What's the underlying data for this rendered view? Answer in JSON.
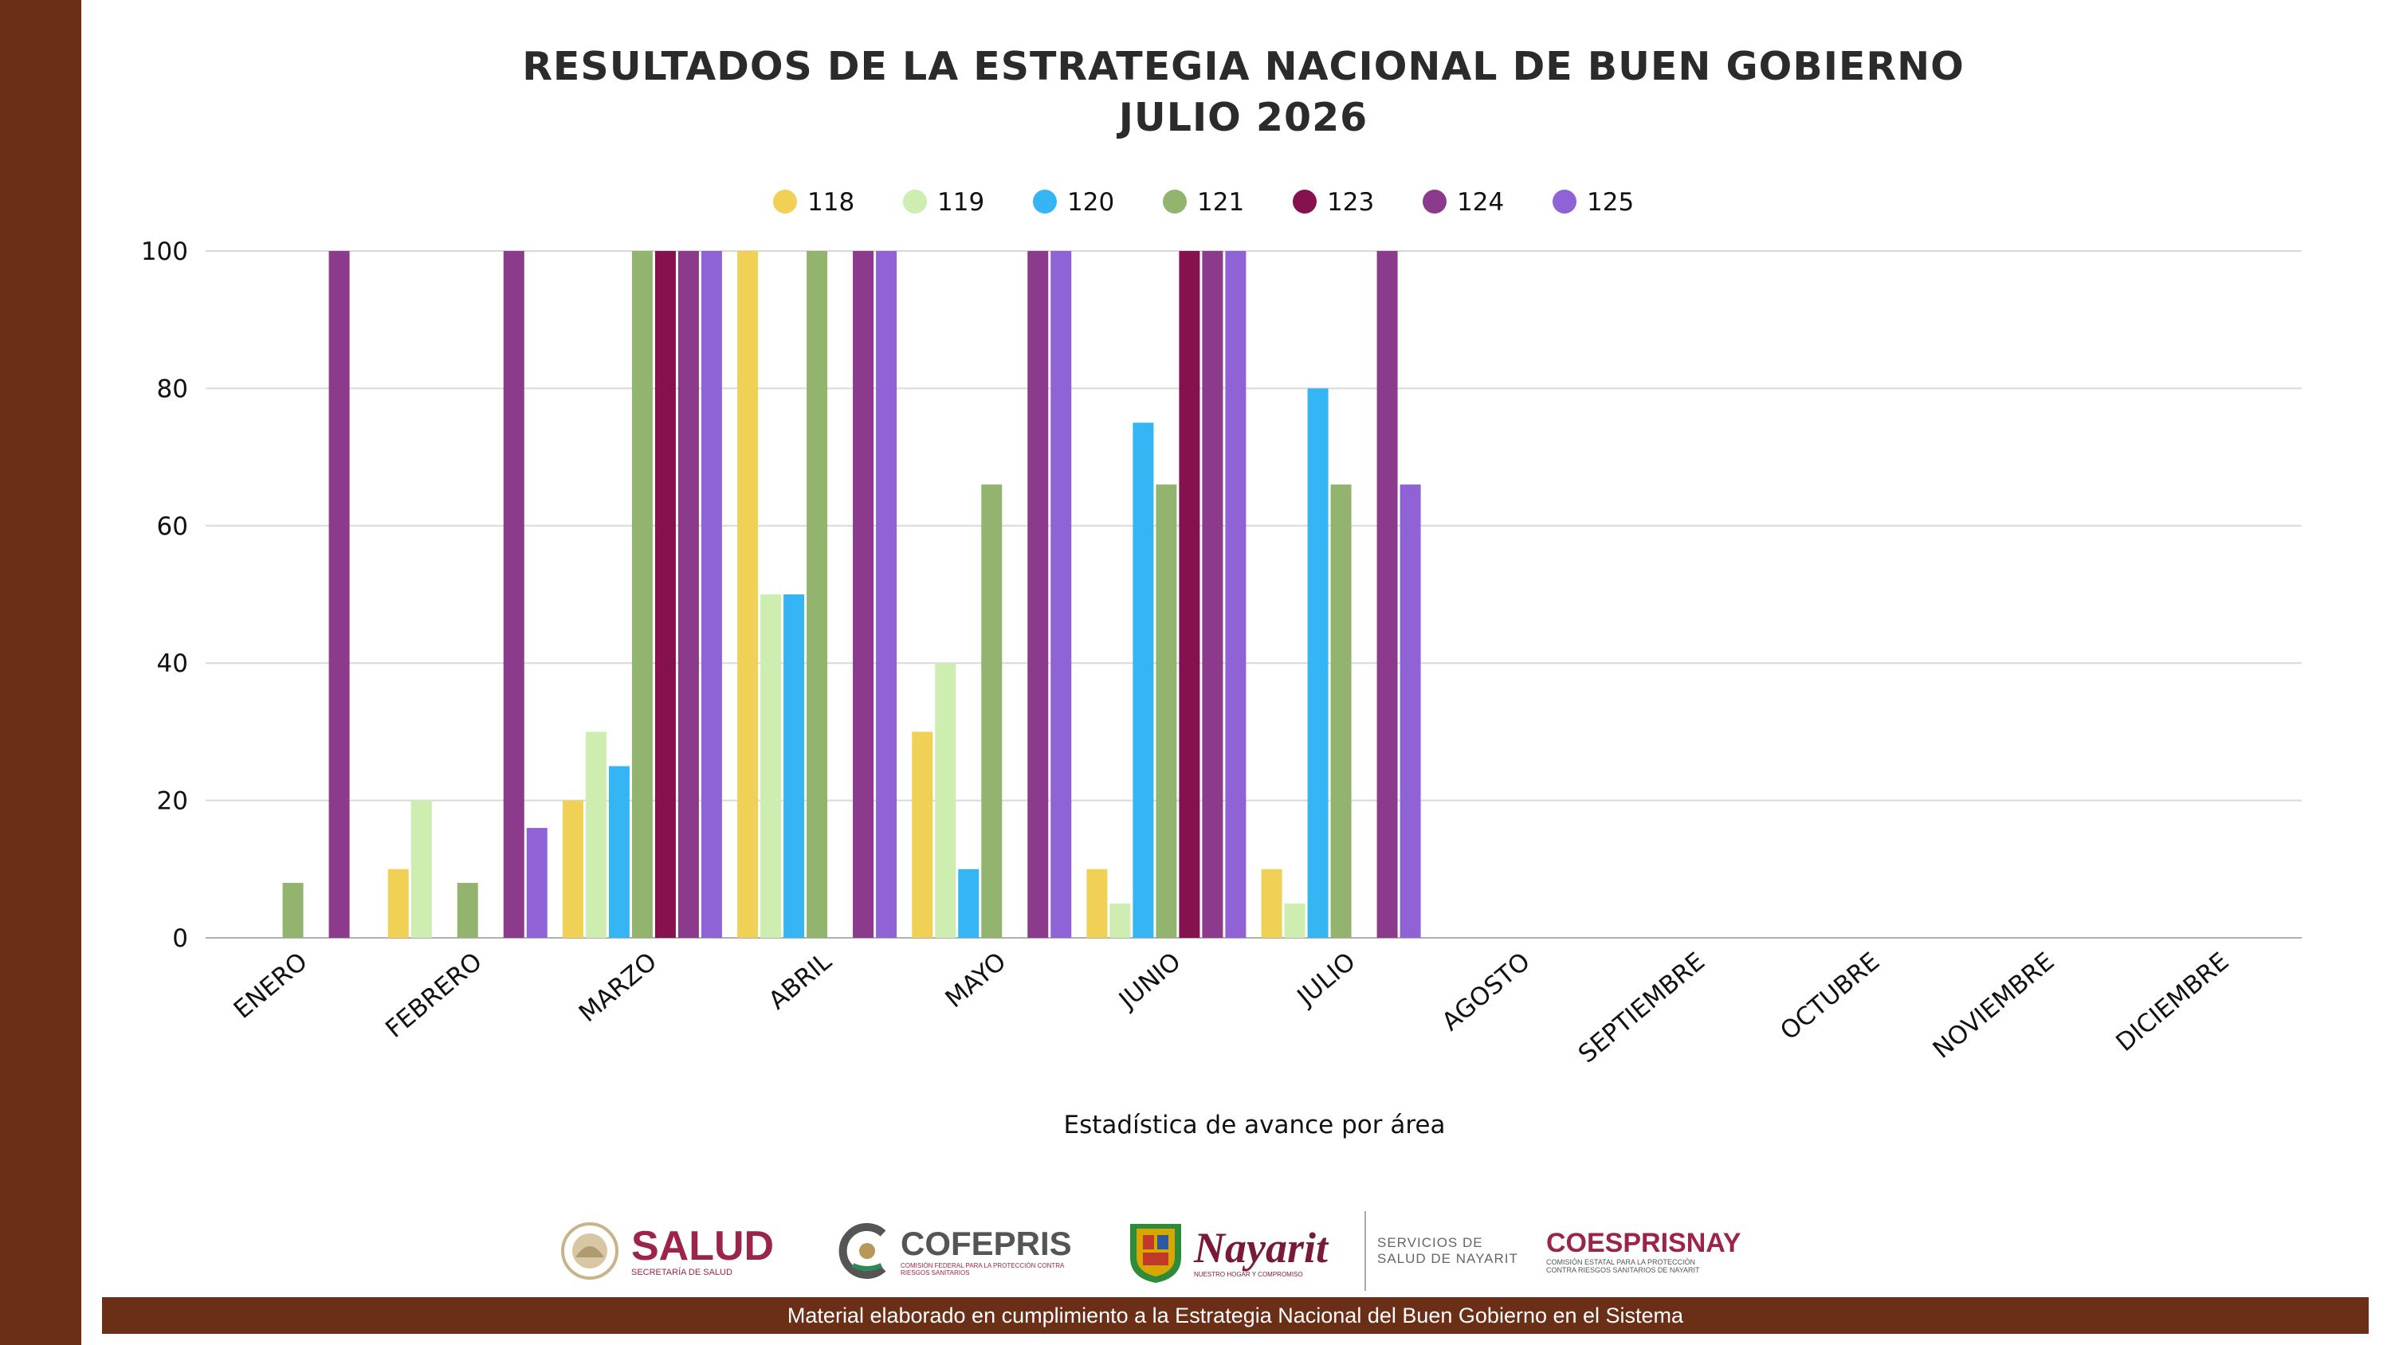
{
  "title": {
    "line1": "RESULTADOS DE LA ESTRATEGIA NACIONAL DE BUEN GOBIERNO",
    "line2": "JULIO 2026"
  },
  "chart_data": {
    "type": "bar",
    "title": "RESULTADOS DE LA ESTRATEGIA NACIONAL DE BUEN GOBIERNO JULIO 2026",
    "xlabel": "Estadística de avance por área",
    "ylabel": "",
    "ylim": [
      0,
      100
    ],
    "yticks": [
      0,
      20,
      40,
      60,
      80,
      100
    ],
    "grid": true,
    "legend_position": "top",
    "categories": [
      "ENERO",
      "FEBRERO",
      "MARZO",
      "ABRIL",
      "MAYO",
      "JUNIO",
      "JULIO",
      "AGOSTO",
      "SEPTIEMBRE",
      "OCTUBRE",
      "NOVIEMBRE",
      "DICIEMBRE"
    ],
    "series": [
      {
        "name": "118",
        "color": "#f0d155",
        "values": [
          0,
          10,
          20,
          100,
          30,
          10,
          10,
          null,
          null,
          null,
          null,
          null
        ]
      },
      {
        "name": "119",
        "color": "#cdeeb0",
        "values": [
          0,
          20,
          30,
          50,
          40,
          5,
          5,
          null,
          null,
          null,
          null,
          null
        ]
      },
      {
        "name": "120",
        "color": "#36b5f4",
        "values": [
          0,
          0,
          25,
          50,
          10,
          75,
          80,
          null,
          null,
          null,
          null,
          null
        ]
      },
      {
        "name": "121",
        "color": "#93b46f",
        "values": [
          8,
          8,
          100,
          100,
          66,
          66,
          66,
          null,
          null,
          null,
          null,
          null
        ]
      },
      {
        "name": "123",
        "color": "#85124f",
        "values": [
          0,
          0,
          100,
          0,
          0,
          100,
          0,
          null,
          null,
          null,
          null,
          null
        ]
      },
      {
        "name": "124",
        "color": "#8c3a8c",
        "values": [
          100,
          100,
          100,
          100,
          100,
          100,
          100,
          null,
          null,
          null,
          null,
          null
        ]
      },
      {
        "name": "125",
        "color": "#8f63d6",
        "values": [
          0,
          16,
          100,
          100,
          100,
          100,
          66,
          null,
          null,
          null,
          null,
          null
        ]
      }
    ]
  },
  "logos": {
    "salud": {
      "name": "SALUD",
      "sub": "SECRETARÍA DE SALUD"
    },
    "cofepris": {
      "name": "COFEPRIS",
      "sub": "COMISIÓN FEDERAL PARA LA PROTECCIÓN CONTRA RIESGOS SANITARIOS"
    },
    "nayarit": {
      "name": "Nayarit",
      "sub": "NUESTRO HOGAR Y COMPROMISO"
    },
    "servicios": {
      "line1": "SERVICIOS DE",
      "line2": "SALUD DE NAYARIT"
    },
    "coesprisnay": {
      "name": "COESPRISNAY",
      "sub1": "COMISIÓN ESTATAL PARA LA PROTECCIÓN",
      "sub2": "CONTRA RIESGOS SANITARIOS DE NAYARIT"
    }
  },
  "footer": {
    "text": "Material elaborado en cumplimiento a la Estrategia Nacional  del Buen Gobierno en el Sistema"
  },
  "colors": {
    "brand_brown": "#6b2e17",
    "salud_red": "#9d2449",
    "grid": "#d9d9d9"
  }
}
